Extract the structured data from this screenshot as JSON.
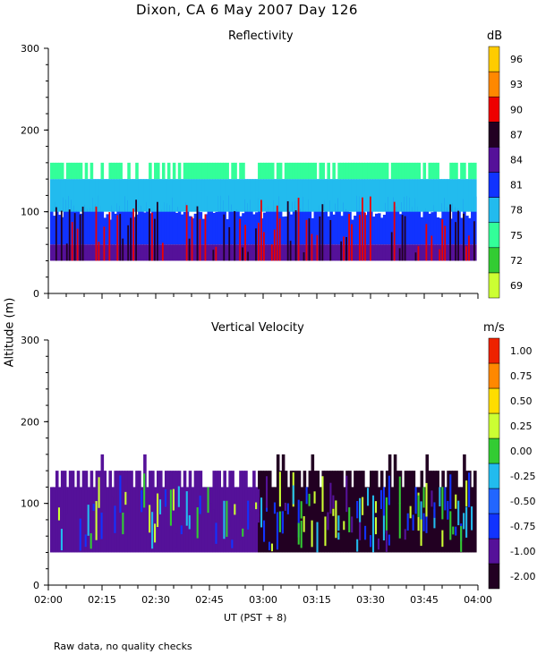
{
  "page": {
    "title": "Dixon, CA  6 May 2007  Day 126",
    "footnote": "Raw data, no quality checks",
    "ylabel": "Altitude (m)",
    "xlabel": "UT  (PST + 8)"
  },
  "chart_data": [
    {
      "type": "heatmap",
      "title": "Reflectivity",
      "colorbar_unit": "dB",
      "x_ticks": [
        "02:00",
        "02:15",
        "02:30",
        "02:45",
        "03:00",
        "03:15",
        "03:30",
        "03:45",
        "04:00"
      ],
      "y_ticks": [
        0,
        100,
        200,
        300
      ],
      "ylim": [
        0,
        300
      ],
      "xlim": [
        "02:00",
        "04:00"
      ],
      "colorbar_levels": [
        "69",
        "72",
        "75",
        "78",
        "81",
        "84",
        "87",
        "90",
        "93",
        "96"
      ],
      "colorbar_colors": [
        "#ccff33",
        "#33cc33",
        "#33ff99",
        "#22bbee",
        "#1133ff",
        "#551199",
        "#220022",
        "#ee0000",
        "#ff8800",
        "#ffcc00"
      ],
      "layers": [
        {
          "altitude_range": [
            40,
            60
          ],
          "color": "#551199"
        },
        {
          "altitude_range": [
            60,
            100
          ],
          "color": "#1133ff"
        },
        {
          "altitude_range": [
            100,
            140
          ],
          "color": "#22bbee"
        },
        {
          "altitude_range": [
            140,
            160
          ],
          "color": "#33ff99"
        }
      ],
      "data_top_altitude": 160,
      "data_bottom_altitude": 40
    },
    {
      "type": "heatmap",
      "title": "Vertical Velocity",
      "colorbar_unit": "m/s",
      "x_ticks": [
        "02:00",
        "02:15",
        "02:30",
        "02:45",
        "03:00",
        "03:15",
        "03:30",
        "03:45",
        "04:00"
      ],
      "y_ticks": [
        0,
        100,
        200,
        300
      ],
      "ylim": [
        0,
        300
      ],
      "xlim": [
        "02:00",
        "04:00"
      ],
      "colorbar_levels": [
        "-2.00",
        "-1.00",
        "-0.75",
        "-0.50",
        "-0.25",
        "0.00",
        "0.25",
        "0.50",
        "0.75",
        "1.00"
      ],
      "colorbar_colors": [
        "#220022",
        "#551199",
        "#1133ff",
        "#2266ff",
        "#22bbee",
        "#33cc33",
        "#ccff33",
        "#ffdd00",
        "#ff8800",
        "#ee2200"
      ],
      "layers": [
        {
          "time_range": [
            "02:00",
            "02:58"
          ],
          "color": "#551199"
        },
        {
          "time_range": [
            "02:58",
            "04:00"
          ],
          "color": "#220022"
        }
      ],
      "data_top_altitude": 140,
      "data_bottom_altitude": 40
    }
  ]
}
